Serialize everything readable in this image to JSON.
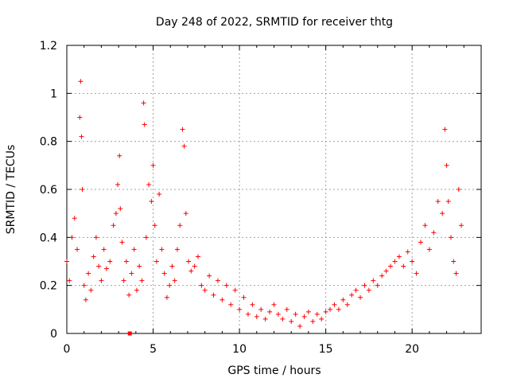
{
  "chart_data": {
    "type": "scatter",
    "title": "Day 248 of 2022, SRMTID for receiver thtg",
    "xlabel": "GPS time / hours",
    "ylabel": "SRMTID / TECUs",
    "xlim": [
      0,
      24
    ],
    "ylim": [
      0,
      1.2
    ],
    "grid": true,
    "x_ticks": [
      0,
      5,
      10,
      15,
      20
    ],
    "x_tick_labels": [
      "0",
      "5",
      "10",
      "15",
      "20"
    ],
    "y_ticks": [
      0,
      0.2,
      0.4,
      0.6,
      0.8,
      1.0,
      1.2
    ],
    "y_tick_labels": [
      "0",
      "0.2",
      "0.4",
      "0.6",
      "0.8",
      "1",
      "1.2"
    ],
    "marker": "plus",
    "marker_color": "#ff0000",
    "outlier_marker": "square",
    "outlier_point": [
      3.65,
      0.0
    ],
    "series": [
      {
        "name": "SRMTID",
        "x": [
          0.0,
          0.15,
          0.3,
          0.45,
          0.6,
          0.75,
          0.8,
          0.85,
          0.9,
          1.0,
          1.1,
          1.25,
          1.4,
          1.55,
          1.7,
          1.85,
          2.0,
          2.15,
          2.3,
          2.5,
          2.7,
          2.85,
          2.95,
          3.05,
          3.1,
          3.2,
          3.3,
          3.45,
          3.6,
          3.75,
          3.9,
          4.05,
          4.2,
          4.35,
          4.45,
          4.5,
          4.6,
          4.75,
          4.9,
          5.0,
          5.1,
          5.2,
          5.35,
          5.5,
          5.65,
          5.8,
          5.95,
          6.1,
          6.25,
          6.4,
          6.55,
          6.7,
          6.8,
          6.9,
          7.05,
          7.2,
          7.4,
          7.6,
          7.8,
          8.0,
          8.25,
          8.5,
          8.75,
          9.0,
          9.25,
          9.5,
          9.75,
          10.0,
          10.25,
          10.5,
          10.75,
          11.0,
          11.25,
          11.5,
          11.75,
          12.0,
          12.25,
          12.5,
          12.75,
          13.0,
          13.25,
          13.5,
          13.75,
          14.0,
          14.25,
          14.5,
          14.75,
          15.0,
          15.25,
          15.5,
          15.75,
          16.0,
          16.25,
          16.5,
          16.75,
          17.0,
          17.25,
          17.5,
          17.75,
          18.0,
          18.25,
          18.5,
          18.75,
          19.0,
          19.25,
          19.5,
          19.75,
          20.0,
          20.25,
          20.5,
          20.75,
          21.0,
          21.25,
          21.5,
          21.75,
          21.9,
          22.0,
          22.1,
          22.25,
          22.4,
          22.55,
          22.7,
          22.85
        ],
        "y": [
          0.3,
          0.22,
          0.4,
          0.48,
          0.35,
          0.9,
          1.05,
          0.82,
          0.6,
          0.2,
          0.14,
          0.25,
          0.18,
          0.32,
          0.4,
          0.28,
          0.22,
          0.35,
          0.27,
          0.3,
          0.45,
          0.5,
          0.62,
          0.74,
          0.52,
          0.38,
          0.22,
          0.3,
          0.16,
          0.25,
          0.35,
          0.18,
          0.28,
          0.22,
          0.96,
          0.87,
          0.4,
          0.62,
          0.55,
          0.7,
          0.45,
          0.3,
          0.58,
          0.35,
          0.25,
          0.15,
          0.2,
          0.28,
          0.22,
          0.35,
          0.45,
          0.85,
          0.78,
          0.5,
          0.3,
          0.26,
          0.28,
          0.32,
          0.2,
          0.18,
          0.24,
          0.16,
          0.22,
          0.14,
          0.2,
          0.12,
          0.18,
          0.1,
          0.15,
          0.08,
          0.12,
          0.07,
          0.1,
          0.06,
          0.09,
          0.12,
          0.08,
          0.06,
          0.1,
          0.05,
          0.08,
          0.03,
          0.07,
          0.09,
          0.05,
          0.08,
          0.06,
          0.09,
          0.1,
          0.12,
          0.1,
          0.14,
          0.12,
          0.16,
          0.18,
          0.15,
          0.2,
          0.18,
          0.22,
          0.2,
          0.24,
          0.26,
          0.28,
          0.3,
          0.32,
          0.28,
          0.34,
          0.3,
          0.25,
          0.38,
          0.45,
          0.35,
          0.42,
          0.55,
          0.5,
          0.85,
          0.7,
          0.55,
          0.4,
          0.3,
          0.25,
          0.6,
          0.45
        ]
      }
    ]
  }
}
